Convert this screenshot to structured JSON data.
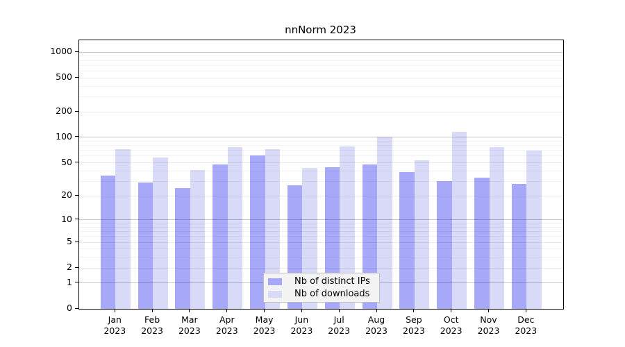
{
  "figure": {
    "title": "nnNorm 2023",
    "background": "#ffffff"
  },
  "chart_data": {
    "type": "bar",
    "title": "nnNorm 2023",
    "categories": [
      "Jan 2023",
      "Feb 2023",
      "Mar 2023",
      "Apr 2023",
      "May 2023",
      "Jun 2023",
      "Jul 2023",
      "Aug 2023",
      "Sep 2023",
      "Oct 2023",
      "Nov 2023",
      "Dec 2023"
    ],
    "series": [
      {
        "name": "Nb of distinct IPs",
        "color": "#a8a8f8",
        "values": [
          35,
          29,
          25,
          48,
          61,
          27,
          44,
          48,
          39,
          30,
          33,
          28
        ]
      },
      {
        "name": "Nb of downloads",
        "color": "#d9d9f8",
        "values": [
          72,
          58,
          41,
          76,
          73,
          43,
          78,
          102,
          53,
          117,
          76,
          70
        ]
      }
    ],
    "xlabel": "",
    "ylabel": "",
    "y_axis": {
      "scale": "log10(1+x)",
      "ticks": [
        0,
        1,
        2,
        5,
        10,
        20,
        50,
        100,
        200,
        500,
        1000
      ],
      "ylim": [
        0,
        1380
      ]
    },
    "grid": true,
    "legend": {
      "position": "bottom-center-inside",
      "background": "#f3f3f3",
      "border_color": "#bfbfbf"
    }
  }
}
